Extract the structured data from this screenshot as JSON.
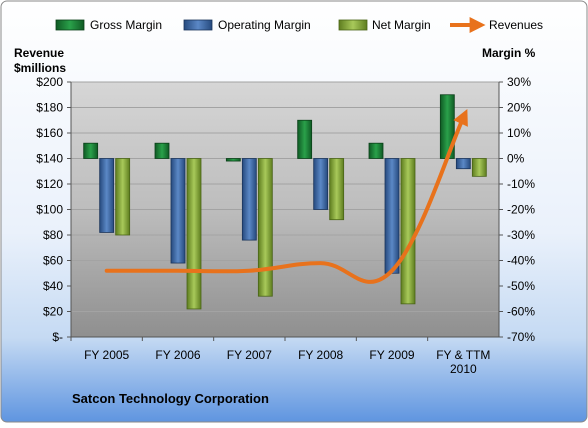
{
  "chart_data": {
    "type": "bar",
    "categories": [
      "FY 2005",
      "FY 2006",
      "FY 2007",
      "FY 2008",
      "FY 2009",
      "FY & TTM 2010"
    ],
    "series": [
      {
        "name": "Gross Margin",
        "values": [
          6,
          6,
          -1,
          15,
          6,
          25
        ],
        "axis": "right",
        "color": "#1f8a3a"
      },
      {
        "name": "Operating Margin",
        "values": [
          -29,
          -41,
          -32,
          -20,
          -45,
          -4
        ],
        "axis": "right",
        "color": "#3f6fae"
      },
      {
        "name": "Net Margin",
        "values": [
          -30,
          -59,
          -54,
          -24,
          -57,
          -7
        ],
        "axis": "right",
        "color": "#8db23c"
      },
      {
        "name": "Revenues",
        "type": "line",
        "values": [
          52,
          52,
          52,
          58,
          52,
          172
        ],
        "axis": "left",
        "color": "#e8721c"
      }
    ],
    "left_axis": {
      "label_line1": "Revenue",
      "label_line2": "$millions",
      "ylim": [
        0,
        200
      ],
      "ticks": [
        "$-",
        "$20",
        "$40",
        "$60",
        "$80",
        "$100",
        "$120",
        "$140",
        "$160",
        "$180",
        "$200"
      ]
    },
    "right_axis": {
      "label": "Margin %",
      "ylim": [
        -70,
        30
      ],
      "ticks": [
        "-70%",
        "-60%",
        "-50%",
        "-40%",
        "-30%",
        "-20%",
        "-10%",
        "0%",
        "10%",
        "20%",
        "30%"
      ]
    },
    "legend_position": "top",
    "grid": true,
    "footer": "Satcon Technology Corporation"
  }
}
